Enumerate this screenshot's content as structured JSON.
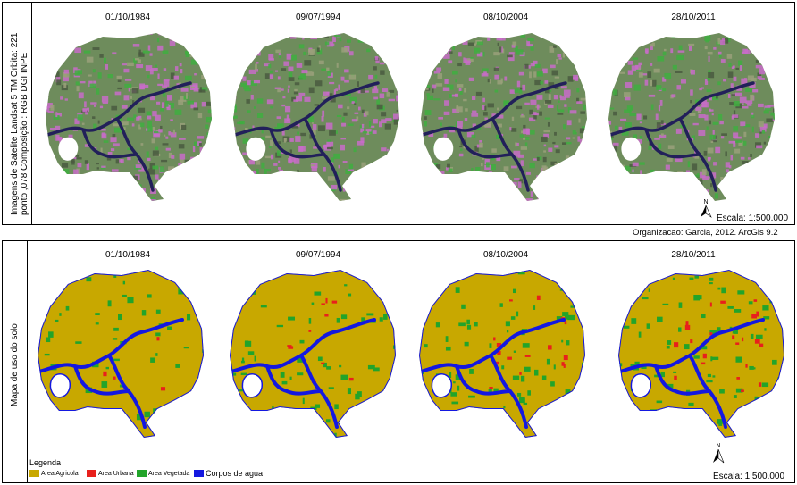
{
  "top_panel": {
    "side_label_line1": "Imagens de Satelite Landsat 5  TM  Orbita: 221",
    "side_label_line2": "ponto ,078 Composição : RGB  DGI INPE",
    "dates": [
      "01/10/1984",
      "09/07/1994",
      "08/10/2004",
      "28/10/2011"
    ],
    "scale": "Escala: 1:500.000",
    "north": "N"
  },
  "credit": "Organizacao: Garcia, 2012.  ArcGis 9.2",
  "bottom_panel": {
    "side_label": "Mapa de uso do solo",
    "dates": [
      "01/10/1984",
      "09/07/1994",
      "08/10/2004",
      "28/10/2011"
    ],
    "scale": "Escala: 1:500.000",
    "north": "N",
    "legend": {
      "title": "Legenda",
      "items": [
        {
          "label": "Area Agricola",
          "color": "#c8a800"
        },
        {
          "label": "Area Urbana",
          "color": "#e8201c"
        },
        {
          "label": "Area Vegetada",
          "color": "#22a42a"
        },
        {
          "label": "Corpos de agua",
          "color": "#1418e0"
        }
      ]
    }
  },
  "colors": {
    "satellite_base": "#6e8c5c",
    "satellite_pink": "#c86cc8",
    "satellite_green": "#3fae3f",
    "satellite_water": "#22205a",
    "agri": "#c8a800",
    "urban": "#e8201c",
    "veg": "#22a42a",
    "water": "#1418e0"
  }
}
